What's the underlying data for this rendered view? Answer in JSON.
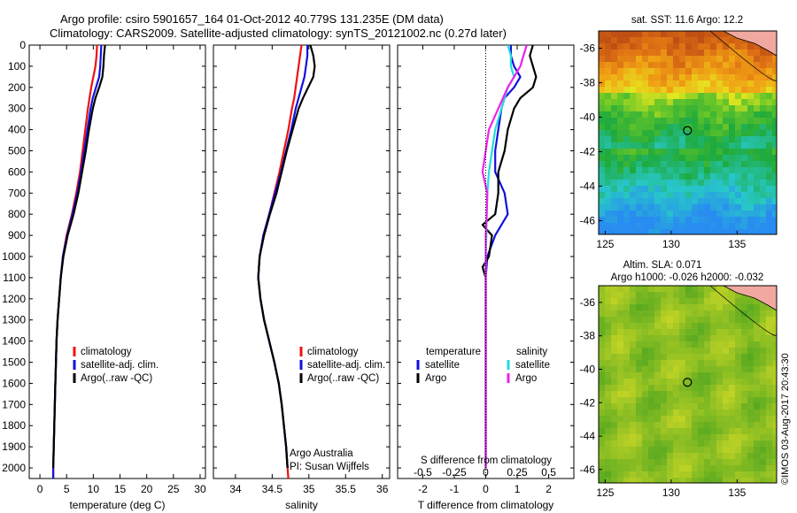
{
  "header": {
    "line1": "Argo profile: csiro 5901657_164 01-Oct-2012 40.779S 131.235E (DM data)",
    "line2": "Climatology: CARS2009. Satellite-adjusted climatology: synTS_20121002.nc (0.27d later)"
  },
  "colors": {
    "climatology": "#ee1111",
    "satellite": "#1111dd",
    "argo": "#000000",
    "s_satellite": "#22dddd",
    "s_argo": "#ee22ee"
  },
  "chart_data": [
    {
      "type": "line",
      "name": "temperature-profile",
      "xlabel": "temperature (deg C)",
      "xlim": [
        -2,
        31
      ],
      "ylim": [
        2050,
        0
      ],
      "xticks": [
        0,
        5,
        10,
        15,
        20,
        25,
        30
      ],
      "yticks": [
        0,
        100,
        200,
        300,
        400,
        500,
        600,
        700,
        800,
        900,
        1000,
        1100,
        1200,
        1300,
        1400,
        1500,
        1600,
        1700,
        1800,
        1900,
        2000
      ],
      "legend": [
        "climatology",
        "satellite-adj. clim.",
        "Argo(..raw -QC)"
      ],
      "series": [
        {
          "name": "climatology",
          "color_key": "climatology",
          "depth": [
            0,
            50,
            100,
            150,
            200,
            250,
            300,
            400,
            500,
            600,
            700,
            800,
            900,
            1000,
            1100,
            1200,
            1300,
            1400,
            1500,
            1600,
            1700,
            1800,
            1900,
            2000,
            2050
          ],
          "values": [
            10.7,
            10.6,
            10.4,
            10.0,
            9.6,
            9.3,
            9.0,
            8.5,
            8.0,
            7.5,
            6.8,
            6.0,
            5.0,
            4.3,
            3.9,
            3.6,
            3.3,
            3.1,
            3.0,
            2.9,
            2.8,
            2.7,
            2.6,
            2.5,
            2.5
          ]
        },
        {
          "name": "satellite-adj. clim.",
          "color_key": "satellite",
          "depth": [
            0,
            50,
            100,
            150,
            200,
            250,
            300,
            400,
            500,
            600,
            700,
            800,
            900,
            1000,
            1100,
            1200,
            1300,
            1400,
            1500,
            1600,
            1700,
            1800,
            1900,
            2000,
            2050
          ],
          "values": [
            11.5,
            11.4,
            11.3,
            11.1,
            10.5,
            9.9,
            9.5,
            8.9,
            8.3,
            7.7,
            7.0,
            6.1,
            5.1,
            4.3,
            3.9,
            3.6,
            3.3,
            3.1,
            3.0,
            2.9,
            2.8,
            2.7,
            2.6,
            2.5,
            2.5
          ]
        },
        {
          "name": "Argo(..raw -QC)",
          "color_key": "argo",
          "depth": [
            0,
            50,
            100,
            150,
            200,
            250,
            300,
            400,
            500,
            600,
            700,
            800,
            900,
            1000,
            1100,
            1200,
            1300,
            1400,
            1500,
            1600,
            1700,
            1800,
            1900,
            2000
          ],
          "values": [
            12.2,
            12.0,
            11.9,
            11.7,
            11.1,
            10.4,
            9.9,
            9.2,
            8.6,
            7.9,
            7.2,
            6.3,
            5.2,
            4.4,
            3.9,
            3.6,
            3.3,
            3.1,
            3.0,
            2.9,
            2.8,
            2.7,
            2.6,
            2.5
          ]
        }
      ]
    },
    {
      "type": "line",
      "name": "salinity-profile",
      "xlabel": "salinity",
      "xlim": [
        33.7,
        36.1
      ],
      "ylim": [
        2050,
        0
      ],
      "xticks": [
        34,
        34.5,
        35,
        35.5,
        36
      ],
      "legend": [
        "climatology",
        "satellite-adj. clim.",
        "Argo(..raw -QC)"
      ],
      "annotation": [
        "Argo Australia",
        "PI: Susan Wijffels"
      ],
      "series": [
        {
          "name": "climatology",
          "color_key": "climatology",
          "depth": [
            0,
            50,
            100,
            150,
            200,
            250,
            300,
            400,
            500,
            600,
            700,
            800,
            900,
            1000,
            1100,
            1200,
            1300,
            1400,
            1500,
            1600,
            1700,
            1800,
            1900,
            2000,
            2050
          ],
          "values": [
            34.9,
            34.88,
            34.86,
            34.84,
            34.82,
            34.8,
            34.77,
            34.72,
            34.66,
            34.6,
            34.53,
            34.46,
            34.38,
            34.33,
            34.31,
            34.34,
            34.39,
            34.46,
            34.53,
            34.59,
            34.63,
            34.66,
            34.69,
            34.71,
            34.72
          ]
        },
        {
          "name": "satellite-adj. clim.",
          "color_key": "satellite",
          "depth": [
            0,
            50,
            100,
            150,
            200,
            250,
            300,
            400,
            500,
            600,
            700,
            800,
            900,
            1000,
            1100,
            1200,
            1300,
            1400,
            1500,
            1600,
            1700,
            1800,
            1900,
            2000
          ],
          "values": [
            34.98,
            34.98,
            34.96,
            34.94,
            34.9,
            34.86,
            34.82,
            34.76,
            34.69,
            34.62,
            34.54,
            34.46,
            34.38,
            34.33,
            34.31,
            34.34,
            34.39,
            34.46,
            34.53,
            34.59,
            34.63,
            34.66,
            34.69,
            34.71
          ]
        },
        {
          "name": "Argo(..raw -QC)",
          "color_key": "argo",
          "depth": [
            0,
            50,
            100,
            150,
            200,
            250,
            300,
            400,
            500,
            600,
            700,
            800,
            900,
            1000,
            1100,
            1200,
            1300,
            1400,
            1500,
            1600,
            1700,
            1800,
            1900,
            2000
          ],
          "values": [
            35.02,
            35.06,
            35.08,
            35.06,
            34.99,
            34.92,
            34.86,
            34.78,
            34.7,
            34.63,
            34.56,
            34.47,
            34.39,
            34.33,
            34.31,
            34.34,
            34.39,
            34.46,
            34.53,
            34.59,
            34.63,
            34.66,
            34.69,
            34.71
          ]
        }
      ]
    },
    {
      "type": "line",
      "name": "difference-profile",
      "xlabel": "T difference from climatology",
      "xlabel2": "S difference from climatology",
      "xlim": [
        -2.8,
        2.8
      ],
      "ylim": [
        2050,
        0
      ],
      "xticks": [
        -2,
        -1,
        0,
        1,
        2
      ],
      "xticks_top": [
        "-0.5",
        "-0.25",
        "0",
        "0.25",
        "0.5"
      ],
      "legend_headers": [
        "temperature",
        "salinity"
      ],
      "legend_left": [
        "satellite",
        "Argo"
      ],
      "legend_right": [
        "satellite",
        "Argo"
      ],
      "series": [
        {
          "name": "temperature satellite",
          "color_key": "satellite",
          "depth": [
            0,
            50,
            100,
            150,
            200,
            250,
            300,
            400,
            500,
            600,
            700,
            800,
            900,
            1000,
            1100,
            1200,
            1500,
            1800,
            2000
          ],
          "values": [
            0.8,
            0.8,
            0.9,
            1.1,
            0.9,
            0.6,
            0.5,
            0.4,
            0.3,
            0.3,
            0.6,
            0.7,
            0.3,
            0.05,
            0.0,
            0.0,
            0.0,
            0.0,
            0.0
          ]
        },
        {
          "name": "temperature Argo",
          "color_key": "argo",
          "depth": [
            0,
            50,
            100,
            150,
            200,
            250,
            300,
            400,
            500,
            600,
            700,
            800,
            850,
            900,
            1000,
            1050,
            1100,
            1200,
            1500,
            1800,
            2000
          ],
          "values": [
            1.5,
            1.4,
            1.5,
            1.6,
            1.5,
            1.1,
            0.9,
            0.7,
            0.6,
            0.4,
            0.4,
            0.3,
            -0.1,
            0.2,
            0.1,
            -0.1,
            0.0,
            0.0,
            0.0,
            0.0,
            0.0
          ]
        },
        {
          "name": "salinity satellite",
          "color_key": "s_satellite",
          "depth": [
            0,
            50,
            100,
            150,
            200,
            300,
            400,
            500,
            600,
            700,
            800,
            900,
            1000,
            1500,
            2000
          ],
          "values": [
            0.7,
            0.8,
            0.8,
            0.9,
            0.7,
            0.5,
            0.3,
            0.2,
            0.1,
            0.05,
            0.03,
            0.02,
            0.0,
            0.0,
            0.0
          ]
        },
        {
          "name": "salinity Argo",
          "color_key": "s_argo",
          "depth": [
            0,
            50,
            100,
            150,
            200,
            300,
            400,
            500,
            600,
            700,
            800,
            900,
            1000,
            1500,
            2000
          ],
          "values": [
            1.3,
            1.2,
            1.1,
            0.9,
            0.7,
            0.4,
            0.1,
            0.0,
            -0.1,
            0.05,
            0.03,
            0.0,
            0.0,
            0.0,
            0.0
          ]
        }
      ]
    },
    {
      "type": "heatmap",
      "name": "sst-map",
      "title": "sat. SST: 11.6  Argo: 12.2",
      "xlim": [
        124.5,
        138
      ],
      "ylim": [
        -46.8,
        -35
      ],
      "xticks": [
        125,
        130,
        135
      ],
      "yticks": [
        -36,
        -38,
        -40,
        -42,
        -44,
        -46
      ],
      "marker": {
        "lon": 131.235,
        "lat": -40.779
      }
    },
    {
      "type": "heatmap",
      "name": "sla-map",
      "title1": "Altim. SLA: 0.071",
      "title2": "Argo h1000: -0.026 h2000: -0.032",
      "xlim": [
        124.5,
        138
      ],
      "ylim": [
        -46.8,
        -35
      ],
      "xticks": [
        125,
        130,
        135
      ],
      "yticks": [
        -36,
        -38,
        -40,
        -42,
        -44,
        -46
      ],
      "marker": {
        "lon": 131.235,
        "lat": -40.779
      }
    }
  ],
  "footer": {
    "credit": "©IMOS 03-Aug-2017 20:43:30"
  }
}
